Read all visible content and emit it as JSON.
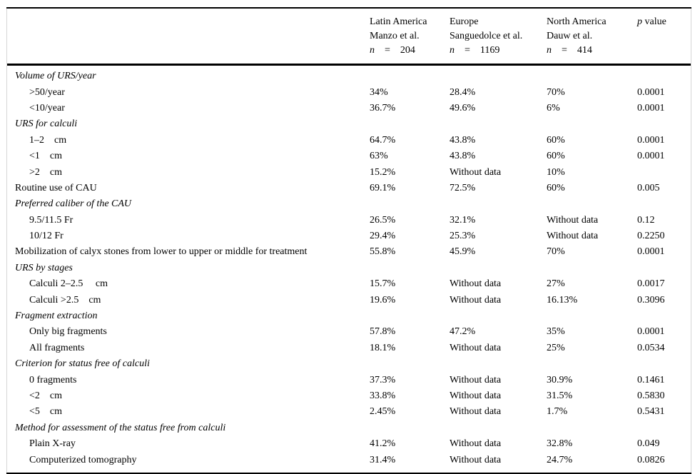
{
  "header": {
    "columns": [
      {
        "region": "Latin America",
        "study": "Manzo et al.",
        "n": "n",
        "eq": "=",
        "count": "204"
      },
      {
        "region": "Europe",
        "study": "Sanguedolce et al.",
        "n": "n",
        "eq": "=",
        "count": "1169"
      },
      {
        "region": "North America",
        "study": "Dauw et al.",
        "n": "n",
        "eq": "=",
        "count": "414"
      }
    ],
    "p_column": {
      "p": "p",
      "label": "value"
    }
  },
  "rows": [
    {
      "label": "Volume of URS/year",
      "style": "section",
      "values": [
        "",
        "",
        "",
        ""
      ]
    },
    {
      "label": ">50/year",
      "style": "item",
      "values": [
        "34%",
        "28.4%",
        "70%",
        "0.0001"
      ]
    },
    {
      "label": "<10/year",
      "style": "item",
      "values": [
        "36.7%",
        "49.6%",
        "6%",
        "0.0001"
      ]
    },
    {
      "label": "URS for calculi",
      "style": "section",
      "values": [
        "",
        "",
        "",
        ""
      ]
    },
    {
      "label": "1–2    cm",
      "style": "item",
      "values": [
        "64.7%",
        "43.8%",
        "60%",
        "0.0001"
      ]
    },
    {
      "label": "<1    cm",
      "style": "item",
      "values": [
        "63%",
        "43.8%",
        "60%",
        "0.0001"
      ]
    },
    {
      "label": ">2    cm",
      "style": "item",
      "values": [
        "15.2%",
        "Without data",
        "10%",
        ""
      ]
    },
    {
      "label": "Routine use of CAU",
      "style": "flat",
      "values": [
        "69.1%",
        "72.5%",
        "60%",
        "0.005"
      ]
    },
    {
      "label": "Preferred caliber of the CAU",
      "style": "section",
      "values": [
        "",
        "",
        "",
        ""
      ]
    },
    {
      "label": "9.5/11.5 Fr",
      "style": "item",
      "values": [
        "26.5%",
        "32.1%",
        "Without data",
        "0.12"
      ]
    },
    {
      "label": "10/12 Fr",
      "style": "item",
      "values": [
        "29.4%",
        "25.3%",
        "Without data",
        "0.2250"
      ]
    },
    {
      "label": "Mobilization of calyx stones from lower to upper or middle for treatment",
      "style": "flat",
      "values": [
        "55.8%",
        "45.9%",
        "70%",
        "0.0001"
      ]
    },
    {
      "label": "URS by stages",
      "style": "section",
      "values": [
        "",
        "",
        "",
        ""
      ]
    },
    {
      "label": "Calculi 2–2.5     cm",
      "style": "item",
      "values": [
        "15.7%",
        "Without data",
        "27%",
        "0.0017"
      ]
    },
    {
      "label": "Calculi >2.5    cm",
      "style": "item",
      "values": [
        "19.6%",
        "Without data",
        "16.13%",
        "0.3096"
      ]
    },
    {
      "label": "Fragment extraction",
      "style": "section",
      "values": [
        "",
        "",
        "",
        ""
      ]
    },
    {
      "label": "Only big fragments",
      "style": "item",
      "values": [
        "57.8%",
        "47.2%",
        "35%",
        "0.0001"
      ]
    },
    {
      "label": "All fragments",
      "style": "item",
      "values": [
        "18.1%",
        "Without data",
        "25%",
        "0.0534"
      ]
    },
    {
      "label": "Criterion for status free of calculi",
      "style": "section",
      "values": [
        "",
        "",
        "",
        ""
      ]
    },
    {
      "label": "0 fragments",
      "style": "item",
      "values": [
        "37.3%",
        "Without data",
        "30.9%",
        "0.1461"
      ]
    },
    {
      "label": "<2    cm",
      "style": "item",
      "values": [
        "33.8%",
        "Without data",
        "31.5%",
        "0.5830"
      ]
    },
    {
      "label": "<5    cm",
      "style": "item",
      "values": [
        "2.45%",
        "Without data",
        "1.7%",
        "0.5431"
      ]
    },
    {
      "label": "Method for assessment of the status free from calculi",
      "style": "section",
      "values": [
        "",
        "",
        "",
        ""
      ]
    },
    {
      "label": "Plain X-ray",
      "style": "item",
      "values": [
        "41.2%",
        "Without data",
        "32.8%",
        "0.049"
      ]
    },
    {
      "label": "Computerized tomography",
      "style": "item",
      "values": [
        "31.4%",
        "Without data",
        "24.7%",
        "0.0826"
      ]
    }
  ]
}
